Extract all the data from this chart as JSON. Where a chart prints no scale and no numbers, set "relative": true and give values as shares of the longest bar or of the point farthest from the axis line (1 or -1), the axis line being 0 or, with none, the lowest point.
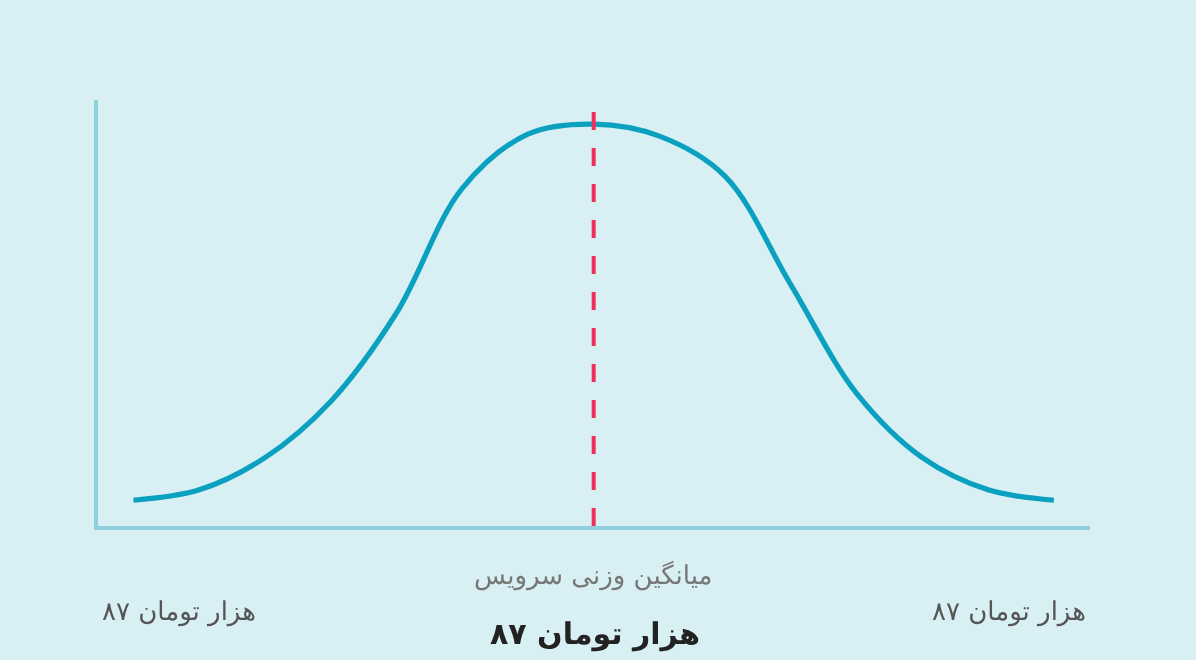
{
  "chart_data": {
    "type": "line",
    "relative": true,
    "categories": [
      null,
      null,
      null,
      null,
      null,
      null,
      null,
      null,
      null,
      null,
      null,
      null,
      null,
      null,
      null
    ],
    "series": [
      {
        "color": "#0aa0bf",
        "values": [
          0.064,
          0.09,
          0.17,
          0.31,
          0.53,
          0.84,
          0.975,
          1,
          0.97,
          0.87,
          0.6,
          0.33,
          0.17,
          0.09,
          0.064
        ]
      }
    ],
    "annotations": [
      "میانگین وزنی سرویس",
      "۸۷ هزار تومان",
      "۸۷ هزار تومان",
      "۸۷ هزار تومان"
    ],
    "marker": "none",
    "line_style": "solid"
  }
}
